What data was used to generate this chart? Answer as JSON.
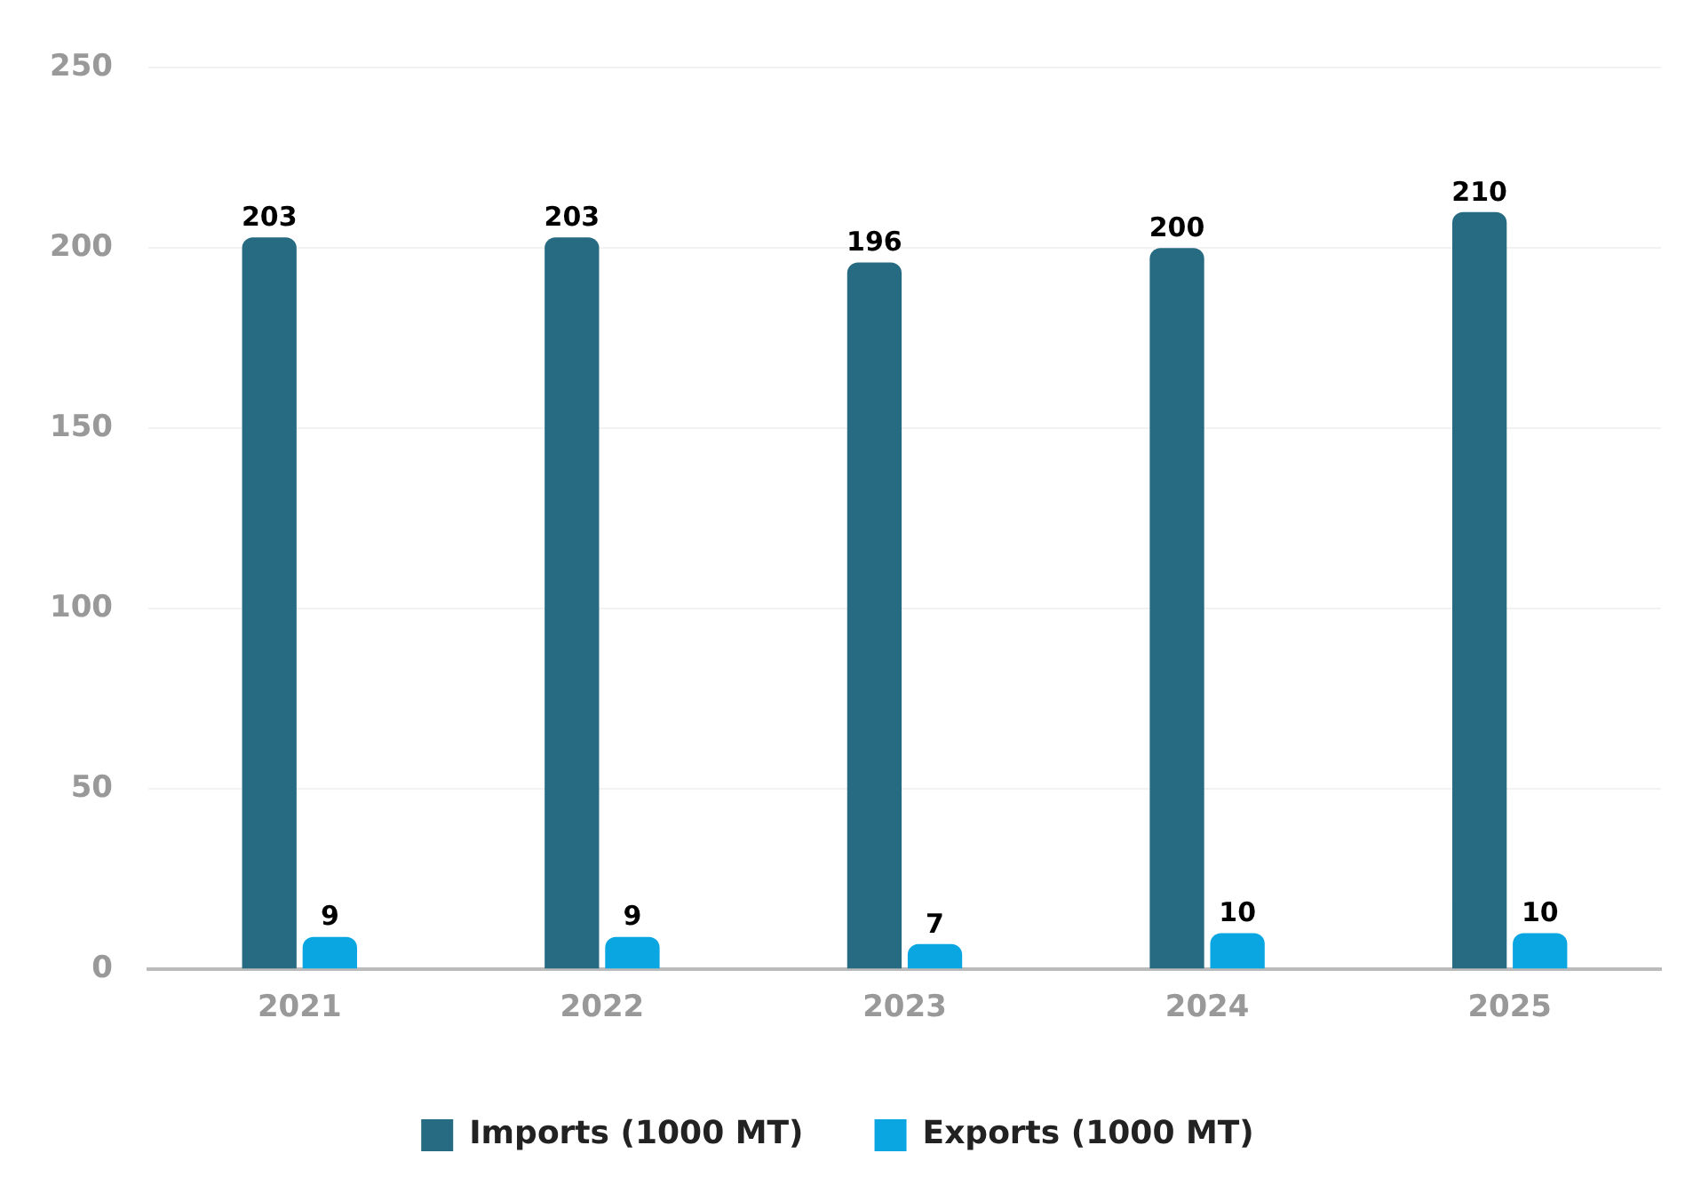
{
  "chart_data": {
    "type": "bar",
    "categories": [
      "2021",
      "2022",
      "2023",
      "2024",
      "2025"
    ],
    "series": [
      {
        "name": "Imports (1000 MT)",
        "color": "#276b82",
        "values": [
          203,
          203,
          196,
          200,
          210
        ]
      },
      {
        "name": "Exports (1000 MT)",
        "color": "#0aa6e2",
        "values": [
          9,
          9,
          7,
          10,
          10
        ]
      }
    ],
    "ylim": [
      0,
      250
    ],
    "yticks": [
      0,
      50,
      100,
      150,
      200,
      250
    ],
    "grid": "y",
    "legend": "bottom",
    "data_labels": true
  }
}
